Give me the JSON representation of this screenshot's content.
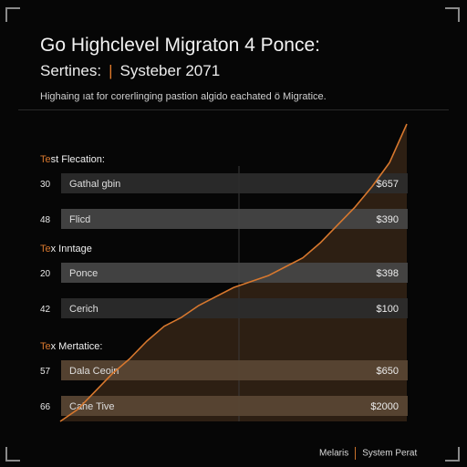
{
  "title": "Go Highclevel Migraton 4 Ponce:",
  "subtitle_left": "Sertines:",
  "subtitle_right": "Systeber 2071",
  "caption": "Highaing ıat for corerlinging pastion algido eachated ö Migratice.",
  "footer": {
    "left": "Melaris",
    "right": "System Perat"
  },
  "colors": {
    "background": "#060606",
    "accent": "#d8782e",
    "area_fill": "#2f2114",
    "bar_dark": "#2d2d2d",
    "bar_light": "#474747",
    "bar_brown": "#5a4634"
  },
  "chart_data": {
    "type": "bar",
    "orientation": "horizontal",
    "groups": [
      {
        "label": "Test Flecation:",
        "rows": [
          {
            "index": "30",
            "name": "Gathal gbin",
            "value": "$657",
            "amount": 657,
            "tone": "bar_dark"
          },
          {
            "index": "48",
            "name": "Flicd",
            "value": "$390",
            "amount": 390,
            "tone": "bar_light"
          }
        ]
      },
      {
        "label": "Tex Inntage",
        "rows": [
          {
            "index": "20",
            "name": "Ponce",
            "value": "$398",
            "amount": 398,
            "tone": "bar_light"
          },
          {
            "index": "42",
            "name": "Cerich",
            "value": "$100",
            "amount": 100,
            "tone": "bar_dark"
          }
        ]
      },
      {
        "label": "Tex Mertatice:",
        "rows": [
          {
            "index": "57",
            "name": "Dala Ceoin",
            "value": "$650",
            "amount": 650,
            "tone": "bar_brown"
          },
          {
            "index": "66",
            "name": "Cahe Tive",
            "value": "$2000",
            "amount": 2000,
            "tone": "bar_brown"
          }
        ]
      }
    ],
    "trend": {
      "x": [
        0,
        1,
        2,
        3,
        4,
        5,
        6,
        7,
        8,
        9,
        10,
        11,
        12,
        13,
        14,
        15,
        16,
        17,
        18,
        19,
        20
      ],
      "y": [
        0,
        4,
        10,
        16,
        21,
        27,
        32,
        35,
        39,
        42,
        45,
        47,
        49,
        52,
        55,
        60,
        66,
        72,
        79,
        87,
        100
      ]
    }
  }
}
